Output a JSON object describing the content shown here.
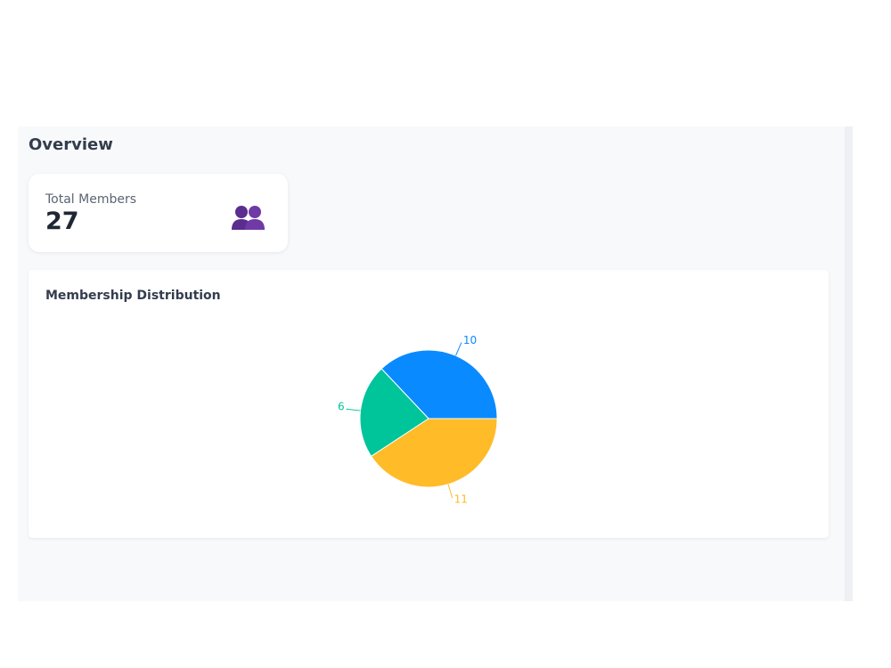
{
  "page": {
    "title": "Overview"
  },
  "card": {
    "label": "Total Members",
    "value": 27
  },
  "chart_data": {
    "type": "pie",
    "title": "Membership Distribution",
    "values": [
      10,
      6,
      11
    ],
    "colors": [
      "#0a8aff",
      "#00c49a",
      "#ffbb28"
    ]
  }
}
